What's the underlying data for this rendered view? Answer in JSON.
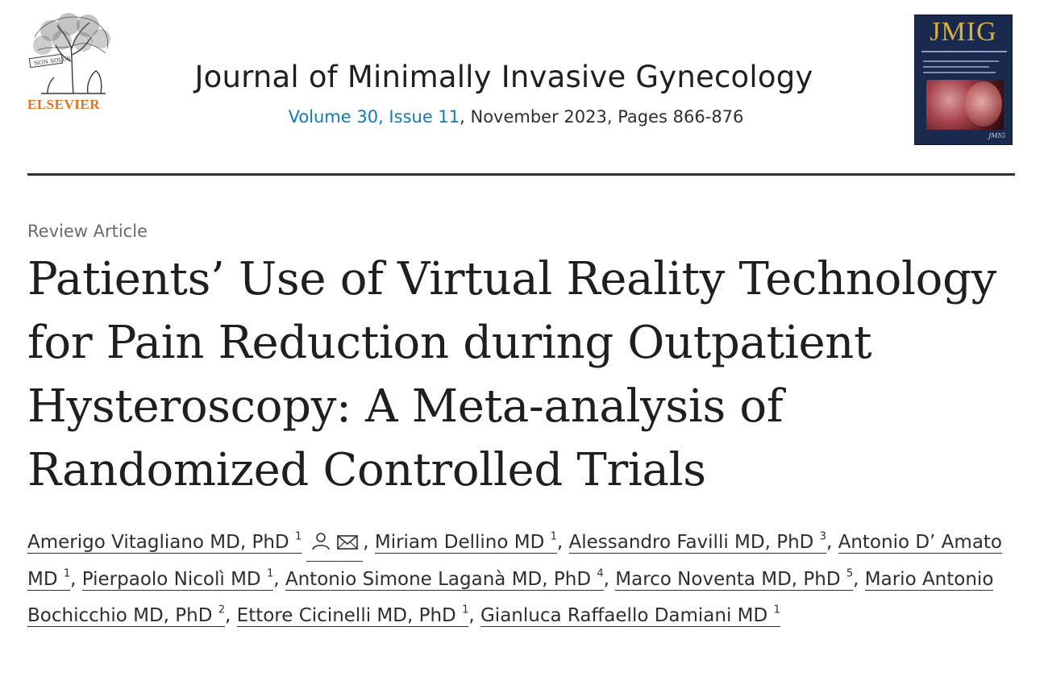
{
  "header": {
    "publisher": "ELSEVIER",
    "journal_title": "Journal of Minimally Invasive Gynecology",
    "volume_issue_link": "Volume 30, Issue 11",
    "issue_rest": ", November 2023, Pages 866-876",
    "cover_title": "JMIG",
    "cover_signature": "JMIG"
  },
  "article": {
    "type": "Review Article",
    "title": "Patients’ Use of Virtual Reality Technology for Pain Reduction during Outpatient Hysteroscopy: A Meta-analysis of Randomized Controlled Trials"
  },
  "authors": [
    {
      "name": "Amerigo Vitagliano MD, PhD",
      "aff": "1"
    },
    {
      "name": "Miriam Dellino MD",
      "aff": "1"
    },
    {
      "name": "Alessandro Favilli MD, PhD",
      "aff": "3"
    },
    {
      "name": "Antonio D’ Amato MD",
      "aff": "1"
    },
    {
      "name": "Pierpaolo Nicolì MD",
      "aff": "1"
    },
    {
      "name": "Antonio Simone Laganà MD, PhD",
      "aff": "4"
    },
    {
      "name": "Marco Noventa MD, PhD",
      "aff": "5"
    },
    {
      "name": "Mario Antonio Bochicchio MD, PhD",
      "aff": "2"
    },
    {
      "name": "Ettore Cicinelli MD, PhD",
      "aff": "1"
    },
    {
      "name": "Gianluca Raffaello Damiani MD",
      "aff": "1"
    }
  ],
  "separator": ", ",
  "icons": [
    "person-icon",
    "email-icon"
  ],
  "colors": {
    "link": "#0c7dbb",
    "publisher": "#e9711c",
    "text": "#2e2e2e"
  }
}
